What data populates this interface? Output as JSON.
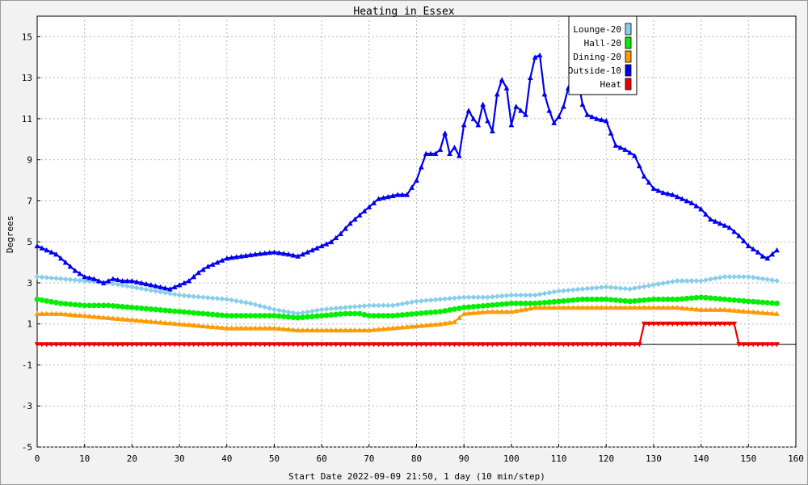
{
  "chart_data": {
    "type": "line",
    "title": "Heating in Essex",
    "xlabel": "Start Date 2022-09-09 21:50, 1 day (10 min/step)",
    "ylabel": "Degrees",
    "xlim": [
      0,
      160
    ],
    "ylim": [
      -5,
      16
    ],
    "x_ticks": [
      0,
      10,
      20,
      30,
      40,
      50,
      60,
      70,
      80,
      90,
      100,
      110,
      120,
      130,
      140,
      150,
      160
    ],
    "y_ticks": [
      -5,
      -3,
      -1,
      1,
      3,
      5,
      7,
      9,
      11,
      13,
      15
    ],
    "grid": true,
    "legend_position": "top-right",
    "series": [
      {
        "name": "Lounge-20",
        "color": "#87ceeb",
        "marker": "diamond",
        "points": [
          [
            0,
            3.3
          ],
          [
            5,
            3.2
          ],
          [
            10,
            3.1
          ],
          [
            15,
            3.0
          ],
          [
            20,
            2.8
          ],
          [
            25,
            2.6
          ],
          [
            30,
            2.4
          ],
          [
            35,
            2.3
          ],
          [
            40,
            2.2
          ],
          [
            45,
            2.0
          ],
          [
            50,
            1.7
          ],
          [
            55,
            1.5
          ],
          [
            60,
            1.7
          ],
          [
            65,
            1.8
          ],
          [
            70,
            1.9
          ],
          [
            75,
            1.9
          ],
          [
            80,
            2.1
          ],
          [
            85,
            2.2
          ],
          [
            90,
            2.3
          ],
          [
            95,
            2.3
          ],
          [
            100,
            2.4
          ],
          [
            105,
            2.4
          ],
          [
            110,
            2.6
          ],
          [
            115,
            2.7
          ],
          [
            120,
            2.8
          ],
          [
            125,
            2.7
          ],
          [
            130,
            2.9
          ],
          [
            135,
            3.1
          ],
          [
            140,
            3.1
          ],
          [
            145,
            3.3
          ],
          [
            150,
            3.3
          ],
          [
            156,
            3.1
          ]
        ]
      },
      {
        "name": "Hall-20",
        "color": "#00ee00",
        "marker": "circle",
        "points": [
          [
            0,
            2.2
          ],
          [
            5,
            2.0
          ],
          [
            10,
            1.9
          ],
          [
            15,
            1.9
          ],
          [
            20,
            1.8
          ],
          [
            25,
            1.7
          ],
          [
            30,
            1.6
          ],
          [
            35,
            1.5
          ],
          [
            40,
            1.4
          ],
          [
            45,
            1.4
          ],
          [
            50,
            1.4
          ],
          [
            55,
            1.3
          ],
          [
            60,
            1.4
          ],
          [
            65,
            1.5
          ],
          [
            68,
            1.5
          ],
          [
            70,
            1.4
          ],
          [
            75,
            1.4
          ],
          [
            80,
            1.5
          ],
          [
            85,
            1.6
          ],
          [
            90,
            1.8
          ],
          [
            95,
            1.9
          ],
          [
            100,
            2.0
          ],
          [
            105,
            2.0
          ],
          [
            110,
            2.1
          ],
          [
            115,
            2.2
          ],
          [
            120,
            2.2
          ],
          [
            125,
            2.1
          ],
          [
            130,
            2.2
          ],
          [
            135,
            2.2
          ],
          [
            140,
            2.3
          ],
          [
            145,
            2.2
          ],
          [
            150,
            2.1
          ],
          [
            156,
            2.0
          ]
        ]
      },
      {
        "name": "Dining-20",
        "color": "#ff9900",
        "marker": "triangle-up",
        "points": [
          [
            0,
            1.5
          ],
          [
            5,
            1.5
          ],
          [
            10,
            1.4
          ],
          [
            15,
            1.3
          ],
          [
            20,
            1.2
          ],
          [
            25,
            1.1
          ],
          [
            30,
            1.0
          ],
          [
            35,
            0.9
          ],
          [
            40,
            0.8
          ],
          [
            45,
            0.8
          ],
          [
            50,
            0.8
          ],
          [
            55,
            0.7
          ],
          [
            60,
            0.7
          ],
          [
            65,
            0.7
          ],
          [
            70,
            0.7
          ],
          [
            75,
            0.8
          ],
          [
            80,
            0.9
          ],
          [
            85,
            1.0
          ],
          [
            88,
            1.1
          ],
          [
            90,
            1.5
          ],
          [
            95,
            1.6
          ],
          [
            100,
            1.6
          ],
          [
            105,
            1.8
          ],
          [
            110,
            1.8
          ],
          [
            115,
            1.8
          ],
          [
            120,
            1.8
          ],
          [
            125,
            1.8
          ],
          [
            130,
            1.8
          ],
          [
            135,
            1.8
          ],
          [
            140,
            1.7
          ],
          [
            145,
            1.7
          ],
          [
            150,
            1.6
          ],
          [
            156,
            1.5
          ]
        ]
      },
      {
        "name": "Outside-10",
        "color": "#0000ee",
        "marker": "triangle-up",
        "points": [
          [
            0,
            4.8
          ],
          [
            2,
            4.6
          ],
          [
            4,
            4.4
          ],
          [
            6,
            4.0
          ],
          [
            8,
            3.6
          ],
          [
            10,
            3.3
          ],
          [
            12,
            3.2
          ],
          [
            14,
            3.0
          ],
          [
            16,
            3.2
          ],
          [
            18,
            3.1
          ],
          [
            20,
            3.1
          ],
          [
            22,
            3.0
          ],
          [
            24,
            2.9
          ],
          [
            26,
            2.8
          ],
          [
            28,
            2.7
          ],
          [
            30,
            2.9
          ],
          [
            32,
            3.1
          ],
          [
            34,
            3.5
          ],
          [
            36,
            3.8
          ],
          [
            38,
            4.0
          ],
          [
            40,
            4.2
          ],
          [
            43,
            4.3
          ],
          [
            46,
            4.4
          ],
          [
            50,
            4.5
          ],
          [
            53,
            4.4
          ],
          [
            55,
            4.3
          ],
          [
            57,
            4.5
          ],
          [
            60,
            4.8
          ],
          [
            62,
            5.0
          ],
          [
            64,
            5.4
          ],
          [
            66,
            5.9
          ],
          [
            68,
            6.3
          ],
          [
            70,
            6.7
          ],
          [
            72,
            7.1
          ],
          [
            74,
            7.2
          ],
          [
            76,
            7.3
          ],
          [
            78,
            7.3
          ],
          [
            80,
            8.0
          ],
          [
            82,
            9.3
          ],
          [
            84,
            9.3
          ],
          [
            85,
            9.5
          ],
          [
            86,
            10.3
          ],
          [
            87,
            9.3
          ],
          [
            88,
            9.6
          ],
          [
            89,
            9.2
          ],
          [
            90,
            10.7
          ],
          [
            91,
            11.4
          ],
          [
            92,
            11.0
          ],
          [
            93,
            10.7
          ],
          [
            94,
            11.7
          ],
          [
            95,
            10.9
          ],
          [
            96,
            10.4
          ],
          [
            97,
            12.2
          ],
          [
            98,
            12.9
          ],
          [
            99,
            12.5
          ],
          [
            100,
            10.7
          ],
          [
            101,
            11.6
          ],
          [
            102,
            11.4
          ],
          [
            103,
            11.2
          ],
          [
            104,
            13.0
          ],
          [
            105,
            14.0
          ],
          [
            106,
            14.1
          ],
          [
            107,
            12.2
          ],
          [
            108,
            11.4
          ],
          [
            109,
            10.8
          ],
          [
            110,
            11.1
          ],
          [
            111,
            11.6
          ],
          [
            112,
            12.5
          ],
          [
            113,
            12.8
          ],
          [
            114,
            13.0
          ],
          [
            115,
            11.7
          ],
          [
            116,
            11.2
          ],
          [
            118,
            11.0
          ],
          [
            120,
            10.9
          ],
          [
            122,
            9.7
          ],
          [
            124,
            9.5
          ],
          [
            126,
            9.2
          ],
          [
            128,
            8.2
          ],
          [
            130,
            7.6
          ],
          [
            132,
            7.4
          ],
          [
            134,
            7.3
          ],
          [
            136,
            7.1
          ],
          [
            138,
            6.9
          ],
          [
            140,
            6.6
          ],
          [
            142,
            6.1
          ],
          [
            144,
            5.9
          ],
          [
            146,
            5.7
          ],
          [
            148,
            5.3
          ],
          [
            150,
            4.8
          ],
          [
            152,
            4.5
          ],
          [
            153,
            4.3
          ],
          [
            154,
            4.2
          ],
          [
            155,
            4.4
          ],
          [
            156,
            4.6
          ]
        ]
      },
      {
        "name": "Heat",
        "color": "#ee0000",
        "marker": "triangle-down",
        "points": [
          [
            0,
            0
          ],
          [
            127,
            0
          ],
          [
            128,
            1
          ],
          [
            147,
            1
          ],
          [
            148,
            0
          ],
          [
            156,
            0
          ]
        ]
      }
    ]
  }
}
